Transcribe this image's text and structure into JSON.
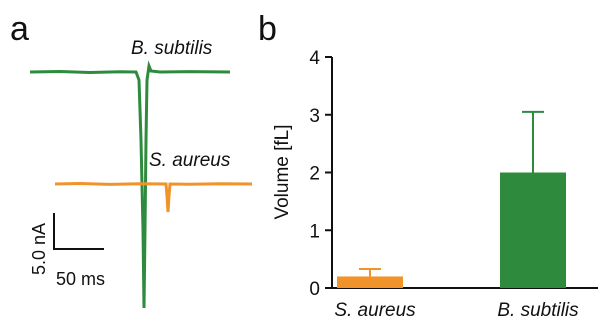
{
  "panel_a": {
    "letter": "a",
    "traces": [
      {
        "label": "B. subtilis",
        "color": "#2e8b3e"
      },
      {
        "label": "S. aureus",
        "color": "#f0932b"
      }
    ],
    "scalebar": {
      "y_label": "5.0 nA",
      "x_label": "50 ms"
    }
  },
  "panel_b": {
    "letter": "b"
  },
  "chart_data": {
    "type": "bar",
    "title": "",
    "xlabel": "",
    "ylabel": "Volume [fL]",
    "ylim": [
      0,
      4
    ],
    "yticks": [
      0,
      1,
      2,
      3,
      4
    ],
    "categories": [
      "S. aureus",
      "B. subtilis"
    ],
    "values": [
      0.2,
      2.0
    ],
    "error_upper": [
      0.13,
      1.05
    ],
    "colors": [
      "#f0932b",
      "#2e8b3e"
    ],
    "grid": false,
    "legend": "none"
  }
}
